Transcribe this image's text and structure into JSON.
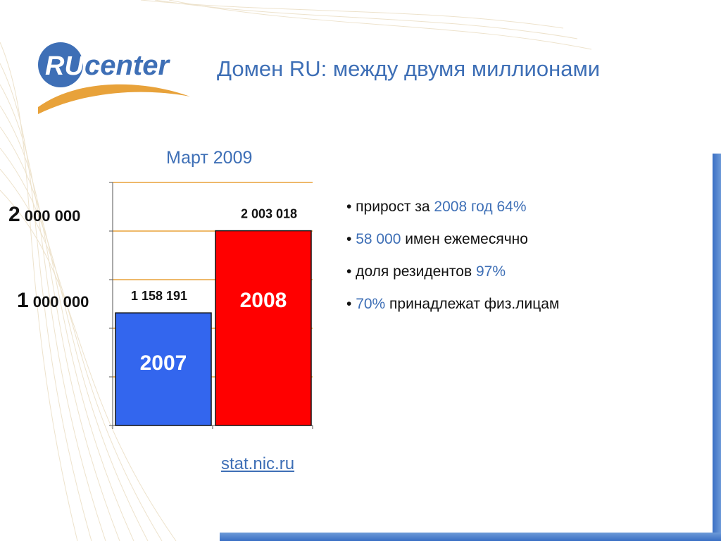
{
  "header": {
    "logo_text_ru": "RU",
    "logo_text_center": "center",
    "title": "Домен RU: между двумя миллионами"
  },
  "colors": {
    "accent": "#3e6fb6",
    "bar_2007": "#3366ee",
    "bar_2008": "#ff0000",
    "gridline": "#e8a23a"
  },
  "chart_data": {
    "type": "bar",
    "title": "Март 2009",
    "categories": [
      "2007",
      "2008"
    ],
    "values": [
      1158191,
      2003018
    ],
    "value_labels": [
      "1 158 191",
      "2 003 018"
    ],
    "ylim": [
      0,
      2500000
    ],
    "yticks": [
      {
        "value": 1000000,
        "big": "1",
        "rest": " 000 000"
      },
      {
        "value": 2000000,
        "big": "2",
        "rest": " 000 000"
      }
    ],
    "grid": true
  },
  "bullets": [
    {
      "parts": [
        {
          "t": "• прирост за ",
          "a": false
        },
        {
          "t": "2008 год 64%",
          "a": true
        }
      ]
    },
    {
      "parts": [
        {
          "t": "• ",
          "a": false
        },
        {
          "t": "58 000",
          "a": true
        },
        {
          "t": " имен ежемесячно",
          "a": false
        }
      ]
    },
    {
      "parts": [
        {
          "t": "• доля резидентов ",
          "a": false
        },
        {
          "t": "97%",
          "a": true
        }
      ]
    },
    {
      "parts": [
        {
          "t": "• ",
          "a": false
        },
        {
          "t": "70%",
          "a": true
        },
        {
          "t": " принадлежат физ.лицам",
          "a": false
        }
      ]
    }
  ],
  "source_link": "stat.nic.ru"
}
